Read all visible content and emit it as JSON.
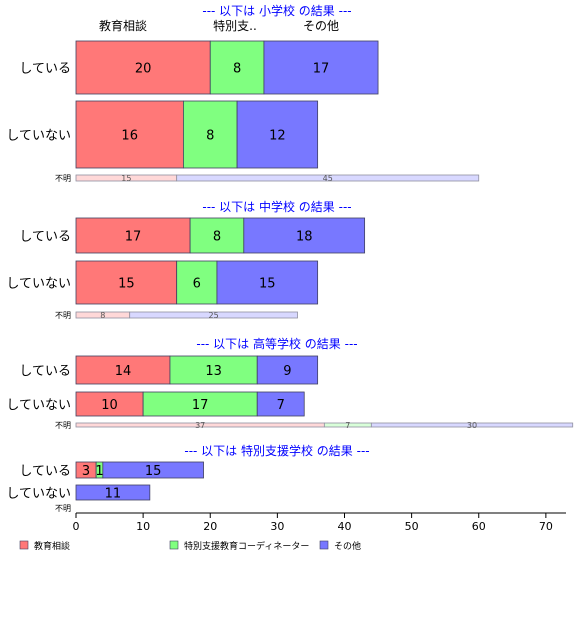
{
  "chart_data": {
    "type": "bar",
    "orientation": "horizontal",
    "stacked": true,
    "xlim": [
      0,
      73
    ],
    "xticks": [
      0,
      10,
      20,
      30,
      40,
      50,
      60,
      70
    ],
    "grid": false,
    "legend_position": "bottom",
    "series_colors": [
      "#ff7878",
      "#80ff80",
      "#7878ff"
    ],
    "legend": [
      "教育相談",
      "特別支援教育コーディネーター",
      "その他"
    ],
    "column_headers": [
      "教育相談",
      "特別支..",
      "その他"
    ],
    "groups": [
      {
        "title": "--- 以下は 小学校 の結果 ---",
        "rows": [
          {
            "label": "している",
            "values": [
              20,
              8,
              17
            ]
          },
          {
            "label": "していない",
            "values": [
              16,
              8,
              12
            ]
          },
          {
            "label": "不明",
            "values": [
              15,
              0,
              45
            ]
          }
        ]
      },
      {
        "title": "--- 以下は 中学校 の結果 ---",
        "rows": [
          {
            "label": "している",
            "values": [
              17,
              8,
              18
            ]
          },
          {
            "label": "していない",
            "values": [
              15,
              6,
              15
            ]
          },
          {
            "label": "不明",
            "values": [
              8,
              0,
              25
            ]
          }
        ]
      },
      {
        "title": "--- 以下は 高等学校 の結果 ---",
        "rows": [
          {
            "label": "している",
            "values": [
              14,
              13,
              9
            ]
          },
          {
            "label": "していない",
            "values": [
              10,
              17,
              7
            ]
          },
          {
            "label": "不明",
            "values": [
              37,
              7,
              30
            ]
          }
        ]
      },
      {
        "title": "--- 以下は 特別支援学校 の結果 ---",
        "rows": [
          {
            "label": "している",
            "values": [
              3,
              1,
              15
            ]
          },
          {
            "label": "していない",
            "values": [
              0,
              0,
              11
            ]
          },
          {
            "label": "不明",
            "values": [
              0,
              0,
              0
            ]
          }
        ]
      }
    ]
  }
}
